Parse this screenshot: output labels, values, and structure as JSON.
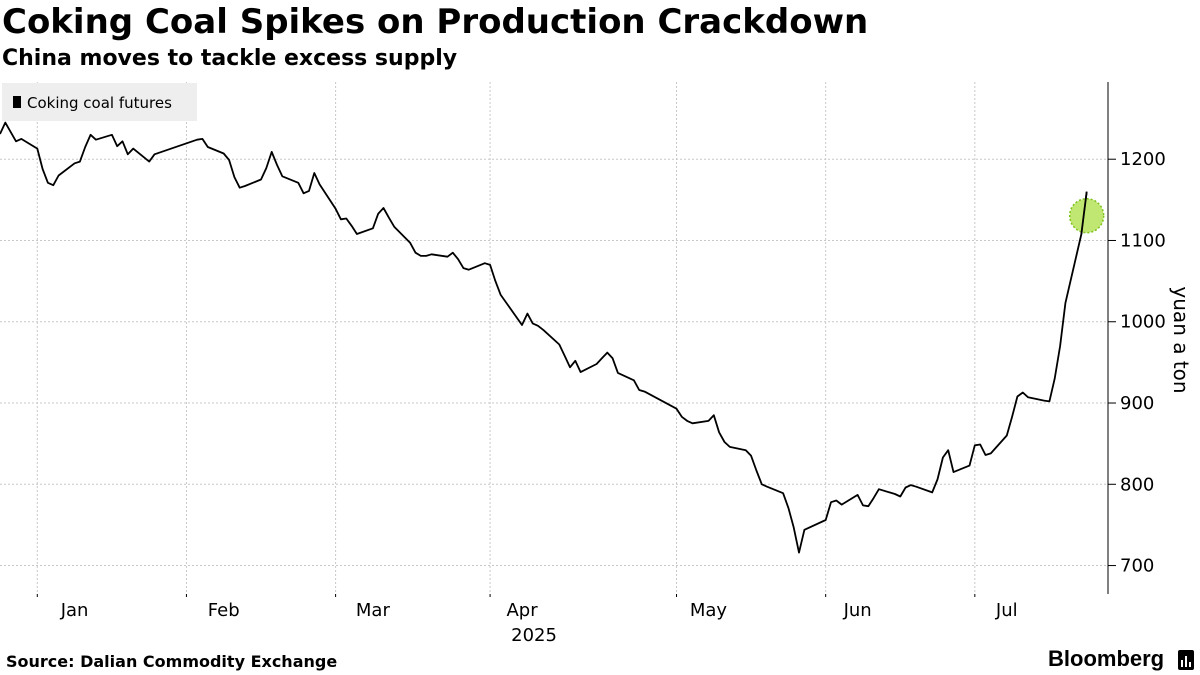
{
  "header": {
    "title": "Coking Coal Spikes on Production Crackdown",
    "subtitle": "China moves to tackle excess supply"
  },
  "footer": {
    "source": "Source: Dalian Commodity Exchange",
    "brand": "Bloomberg"
  },
  "colors": {
    "line": "#000000",
    "highlight_fill": "#b6e35a",
    "highlight_stroke": "#7cc21a",
    "grid": "#c8c8c8",
    "legend_bg": "#eeeeee"
  },
  "chart_data": {
    "type": "line",
    "xlabel": "",
    "ylabel": "yuan a ton",
    "ylim": [
      665,
      1295
    ],
    "yticks": [
      700,
      800,
      900,
      1000,
      1100,
      1200
    ],
    "xlim": [
      "2024-12-30",
      "2025-07-26"
    ],
    "x_ticks": [
      {
        "date": "2025-01-06",
        "label": "Jan"
      },
      {
        "date": "2025-02-03",
        "label": "Feb"
      },
      {
        "date": "2025-03-03",
        "label": "Mar"
      },
      {
        "date": "2025-04-01",
        "label": "Apr"
      },
      {
        "date": "2025-05-06",
        "label": "May"
      },
      {
        "date": "2025-06-03",
        "label": "Jun"
      },
      {
        "date": "2025-07-01",
        "label": "Jul"
      }
    ],
    "x_ticks_minor": [
      "2025-01-13",
      "2025-02-10",
      "2025-03-10",
      "2025-04-07",
      "2025-05-12",
      "2025-06-09",
      "2025-07-07"
    ],
    "year_label": "2025",
    "legend": {
      "label": "Coking coal futures",
      "position": "top-left"
    },
    "grid": true,
    "highlight_last_point": true,
    "series": [
      {
        "name": "Coking coal futures",
        "points": [
          [
            "2024-12-30",
            1231
          ],
          [
            "2024-12-31",
            1245
          ],
          [
            "2025-01-02",
            1222
          ],
          [
            "2025-01-03",
            1225
          ],
          [
            "2025-01-06",
            1213
          ],
          [
            "2025-01-07",
            1188
          ],
          [
            "2025-01-08",
            1171
          ],
          [
            "2025-01-09",
            1168
          ],
          [
            "2025-01-10",
            1180
          ],
          [
            "2025-01-13",
            1195
          ],
          [
            "2025-01-14",
            1197
          ],
          [
            "2025-01-15",
            1215
          ],
          [
            "2025-01-16",
            1230
          ],
          [
            "2025-01-17",
            1224
          ],
          [
            "2025-01-20",
            1230
          ],
          [
            "2025-01-21",
            1216
          ],
          [
            "2025-01-22",
            1222
          ],
          [
            "2025-01-23",
            1206
          ],
          [
            "2025-01-24",
            1213
          ],
          [
            "2025-01-27",
            1197
          ],
          [
            "2025-01-28",
            1206
          ],
          [
            "2025-02-05",
            1224
          ],
          [
            "2025-02-06",
            1225
          ],
          [
            "2025-02-07",
            1215
          ],
          [
            "2025-02-10",
            1207
          ],
          [
            "2025-02-11",
            1199
          ],
          [
            "2025-02-12",
            1178
          ],
          [
            "2025-02-13",
            1165
          ],
          [
            "2025-02-14",
            1167
          ],
          [
            "2025-02-17",
            1175
          ],
          [
            "2025-02-18",
            1189
          ],
          [
            "2025-02-19",
            1209
          ],
          [
            "2025-02-20",
            1193
          ],
          [
            "2025-02-21",
            1179
          ],
          [
            "2025-02-24",
            1171
          ],
          [
            "2025-02-25",
            1158
          ],
          [
            "2025-02-26",
            1161
          ],
          [
            "2025-02-27",
            1183
          ],
          [
            "2025-02-28",
            1169
          ],
          [
            "2025-03-03",
            1139
          ],
          [
            "2025-03-04",
            1126
          ],
          [
            "2025-03-05",
            1127
          ],
          [
            "2025-03-06",
            1118
          ],
          [
            "2025-03-07",
            1108
          ],
          [
            "2025-03-10",
            1115
          ],
          [
            "2025-03-11",
            1133
          ],
          [
            "2025-03-12",
            1140
          ],
          [
            "2025-03-13",
            1128
          ],
          [
            "2025-03-14",
            1117
          ],
          [
            "2025-03-17",
            1097
          ],
          [
            "2025-03-18",
            1085
          ],
          [
            "2025-03-19",
            1081
          ],
          [
            "2025-03-20",
            1081
          ],
          [
            "2025-03-21",
            1083
          ],
          [
            "2025-03-24",
            1080
          ],
          [
            "2025-03-25",
            1085
          ],
          [
            "2025-03-26",
            1077
          ],
          [
            "2025-03-27",
            1066
          ],
          [
            "2025-03-28",
            1064
          ],
          [
            "2025-03-31",
            1072
          ],
          [
            "2025-04-01",
            1070
          ],
          [
            "2025-04-02",
            1050
          ],
          [
            "2025-04-03",
            1033
          ],
          [
            "2025-04-07",
            996
          ],
          [
            "2025-04-08",
            1010
          ],
          [
            "2025-04-09",
            998
          ],
          [
            "2025-04-10",
            995
          ],
          [
            "2025-04-11",
            990
          ],
          [
            "2025-04-14",
            972
          ],
          [
            "2025-04-15",
            958
          ],
          [
            "2025-04-16",
            944
          ],
          [
            "2025-04-17",
            952
          ],
          [
            "2025-04-18",
            938
          ],
          [
            "2025-04-21",
            948
          ],
          [
            "2025-04-22",
            955
          ],
          [
            "2025-04-23",
            962
          ],
          [
            "2025-04-24",
            955
          ],
          [
            "2025-04-25",
            937
          ],
          [
            "2025-04-28",
            928
          ],
          [
            "2025-04-29",
            916
          ],
          [
            "2025-04-30",
            914
          ],
          [
            "2025-05-06",
            893
          ],
          [
            "2025-05-07",
            883
          ],
          [
            "2025-05-08",
            878
          ],
          [
            "2025-05-09",
            875
          ],
          [
            "2025-05-12",
            878
          ],
          [
            "2025-05-13",
            885
          ],
          [
            "2025-05-14",
            864
          ],
          [
            "2025-05-15",
            852
          ],
          [
            "2025-05-16",
            846
          ],
          [
            "2025-05-19",
            842
          ],
          [
            "2025-05-20",
            835
          ],
          [
            "2025-05-21",
            817
          ],
          [
            "2025-05-22",
            800
          ],
          [
            "2025-05-23",
            797
          ],
          [
            "2025-05-26",
            789
          ],
          [
            "2025-05-27",
            771
          ],
          [
            "2025-05-28",
            747
          ],
          [
            "2025-05-29",
            716
          ],
          [
            "2025-05-30",
            744
          ],
          [
            "2025-06-03",
            756
          ],
          [
            "2025-06-04",
            778
          ],
          [
            "2025-06-05",
            780
          ],
          [
            "2025-06-06",
            775
          ],
          [
            "2025-06-09",
            787
          ],
          [
            "2025-06-10",
            774
          ],
          [
            "2025-06-11",
            773
          ],
          [
            "2025-06-12",
            783
          ],
          [
            "2025-06-13",
            794
          ],
          [
            "2025-06-16",
            788
          ],
          [
            "2025-06-17",
            785
          ],
          [
            "2025-06-18",
            796
          ],
          [
            "2025-06-19",
            799
          ],
          [
            "2025-06-20",
            797
          ],
          [
            "2025-06-23",
            790
          ],
          [
            "2025-06-24",
            806
          ],
          [
            "2025-06-25",
            833
          ],
          [
            "2025-06-26",
            842
          ],
          [
            "2025-06-27",
            815
          ],
          [
            "2025-06-30",
            823
          ],
          [
            "2025-07-01",
            848
          ],
          [
            "2025-07-02",
            849
          ],
          [
            "2025-07-03",
            836
          ],
          [
            "2025-07-04",
            838
          ],
          [
            "2025-07-07",
            860
          ],
          [
            "2025-07-08",
            883
          ],
          [
            "2025-07-09",
            908
          ],
          [
            "2025-07-10",
            913
          ],
          [
            "2025-07-11",
            907
          ],
          [
            "2025-07-14",
            903
          ],
          [
            "2025-07-15",
            902
          ],
          [
            "2025-07-16",
            930
          ],
          [
            "2025-07-17",
            970
          ],
          [
            "2025-07-18",
            1023
          ],
          [
            "2025-07-21",
            1108
          ],
          [
            "2025-07-22",
            1160
          ]
        ]
      }
    ]
  }
}
